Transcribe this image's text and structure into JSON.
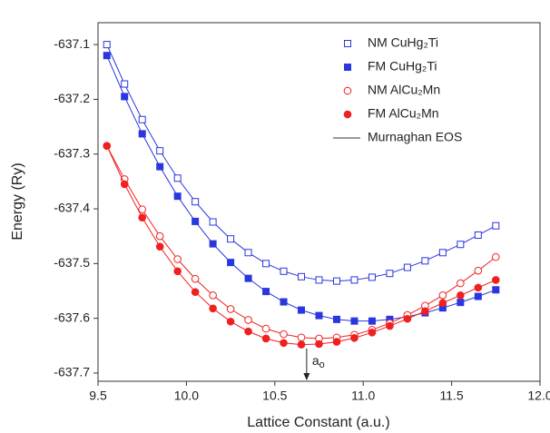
{
  "chart_data": {
    "type": "scatter",
    "x_label": "Lattice Constant (a.u.)",
    "y_label": "Energy (Ry)",
    "xlim": [
      9.5,
      12.0
    ],
    "ylim": [
      -637.715,
      -637.06
    ],
    "xticks": [
      9.5,
      {
        "value": 10,
        "label": "10.0"
      },
      10.5,
      {
        "value": 11,
        "label": "11.0"
      },
      11.5,
      {
        "value": 12,
        "label": "12.0"
      }
    ],
    "yticks": [
      -637.1,
      -637.2,
      -637.3,
      -637.4,
      -637.5,
      -637.6,
      -637.7
    ],
    "fit_label": "Murnaghan EOS",
    "fit_color": "#333333",
    "legend": "upper right",
    "annotation": {
      "text": "a",
      "subscript": "o",
      "x": 10.68
    },
    "x": [
      9.55,
      9.65,
      9.75,
      9.85,
      9.95,
      10.05,
      10.15,
      10.25,
      10.35,
      10.45,
      10.55,
      10.65,
      10.75,
      10.85,
      10.95,
      11.05,
      11.15,
      11.25,
      11.35,
      11.45,
      11.55,
      11.65,
      11.75
    ],
    "series": [
      {
        "name": "NM CuHg₂Ti",
        "color": "#2a36e0",
        "marker": "square",
        "filled": false,
        "values": [
          -637.1,
          -637.172,
          -637.237,
          -637.294,
          -637.344,
          -637.387,
          -637.424,
          -637.455,
          -637.48,
          -637.5,
          -637.514,
          -637.524,
          -637.53,
          -637.532,
          -637.53,
          -637.525,
          -637.518,
          -637.507,
          -637.495,
          -637.48,
          -637.465,
          -637.448,
          -637.431
        ]
      },
      {
        "name": "FM CuHg₂Ti",
        "color": "#2a36e0",
        "marker": "square",
        "filled": true,
        "values": [
          -637.12,
          -637.195,
          -637.263,
          -637.323,
          -637.377,
          -637.423,
          -637.464,
          -637.498,
          -637.527,
          -637.551,
          -637.57,
          -637.585,
          -637.595,
          -637.602,
          -637.605,
          -637.605,
          -637.602,
          -637.597,
          -637.59,
          -637.581,
          -637.571,
          -637.56,
          -637.548
        ]
      },
      {
        "name": "NM AlCu₂Mn",
        "color": "#f02020",
        "marker": "circle",
        "filled": false,
        "values": [
          -637.285,
          -637.346,
          -637.401,
          -637.45,
          -637.492,
          -637.528,
          -637.558,
          -637.583,
          -637.603,
          -637.619,
          -637.629,
          -637.635,
          -637.637,
          -637.635,
          -637.63,
          -637.621,
          -637.609,
          -637.594,
          -637.577,
          -637.558,
          -637.536,
          -637.513,
          -637.488
        ]
      },
      {
        "name": "FM AlCu₂Mn",
        "color": "#f02020",
        "marker": "circle",
        "filled": true,
        "values": [
          -637.285,
          -637.355,
          -637.416,
          -637.469,
          -637.514,
          -637.552,
          -637.582,
          -637.606,
          -637.624,
          -637.637,
          -637.645,
          -637.648,
          -637.647,
          -637.643,
          -637.636,
          -637.626,
          -637.614,
          -637.601,
          -637.587,
          -637.572,
          -637.558,
          -637.544,
          -637.53
        ]
      }
    ]
  }
}
